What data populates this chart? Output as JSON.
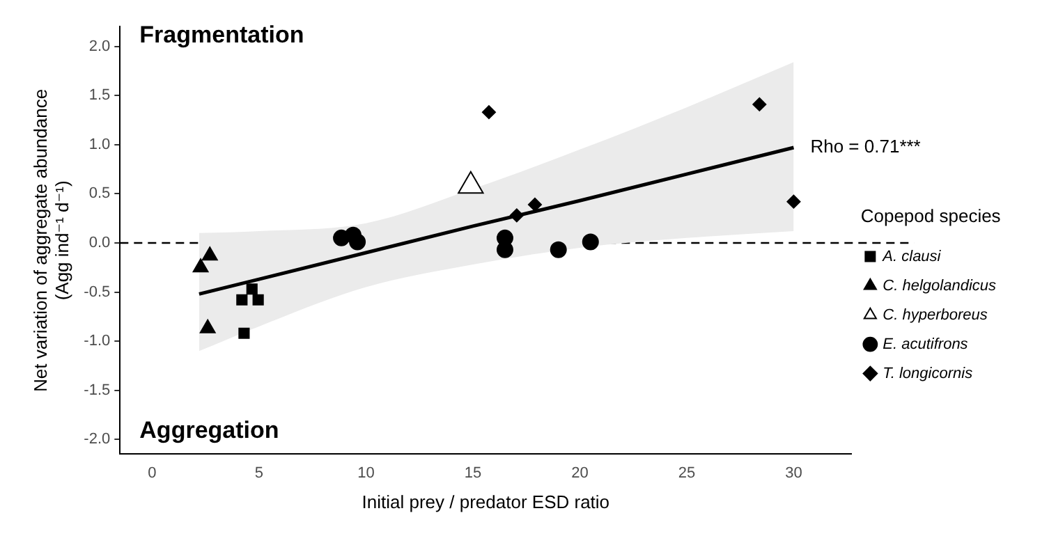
{
  "chart_data": {
    "type": "scatter",
    "xlabel": "Initial prey / predator ESD ratio",
    "ylabel": "Net variation of aggregate abundance\n(Agg ind⁻¹ d⁻¹)",
    "legend_title": "Copepod species",
    "legend": "right",
    "grid": false,
    "xlim": [
      -1.5,
      32.7
    ],
    "xticks": [
      0,
      5,
      10,
      15,
      20,
      25,
      30
    ],
    "ylim": [
      -2.15,
      2.2
    ],
    "yticks": [
      {
        "value": -2,
        "label": "-2.0"
      },
      -1.5,
      {
        "value": -1,
        "label": "-1.0"
      },
      -0.5,
      {
        "value": 0,
        "label": "0.0"
      },
      0.5,
      {
        "value": 1,
        "label": "1.0"
      },
      1.5,
      {
        "value": 2,
        "label": "2.0"
      }
    ],
    "ref_lines": [
      {
        "axis": "y",
        "value": 0,
        "color": "#000000",
        "line_style": "dashed"
      }
    ],
    "annotations": [
      "Fragmentation",
      "Aggregation",
      {
        "text": "Rho = 0.71***",
        "x": 30,
        "y": 0.97
      }
    ],
    "series": [
      {
        "type": "line",
        "color": "#000000",
        "x": [
          2.2,
          5,
          10,
          15,
          20,
          25,
          30
        ],
        "values": [
          -0.52,
          -0.37,
          -0.1,
          0.17,
          0.43,
          0.7,
          0.97
        ],
        "lower": [
          -1.1,
          -0.85,
          -0.45,
          -0.22,
          -0.05,
          0.05,
          0.12
        ],
        "upper": [
          0.1,
          0.12,
          0.2,
          0.55,
          0.95,
          1.38,
          1.84
        ],
        "marker": "none"
      },
      {
        "name": "A. clausi",
        "color": "#000000",
        "marker": "square",
        "x": [
          4.67,
          4.2,
          4.96,
          4.3
        ],
        "values": [
          -0.47,
          -0.58,
          -0.58,
          -0.92
        ]
      },
      {
        "name": "C. helgolandicus",
        "color": "#000000",
        "marker": "triangle",
        "x": [
          2.7,
          2.27,
          2.6
        ],
        "values": [
          -0.13,
          -0.25,
          -0.87
        ]
      },
      {
        "name": "C. hyperboreus",
        "color": "#ffffff",
        "marker": "triangle",
        "x": [
          14.9
        ],
        "values": [
          0.58
        ]
      },
      {
        "name": "E. acutifrons",
        "color": "#000000",
        "marker": "circle",
        "x": [
          8.85,
          9.4,
          9.6,
          16.5,
          16.5,
          19.0,
          20.5
        ],
        "values": [
          0.05,
          0.08,
          0.01,
          0.05,
          -0.07,
          -0.07,
          0.01
        ]
      },
      {
        "name": "T. longicornis",
        "color": "#000000",
        "marker": "diamond",
        "x": [
          15.75,
          17.05,
          17.9,
          28.4,
          30.0
        ],
        "values": [
          1.33,
          0.28,
          0.39,
          1.41,
          0.42
        ]
      }
    ]
  }
}
